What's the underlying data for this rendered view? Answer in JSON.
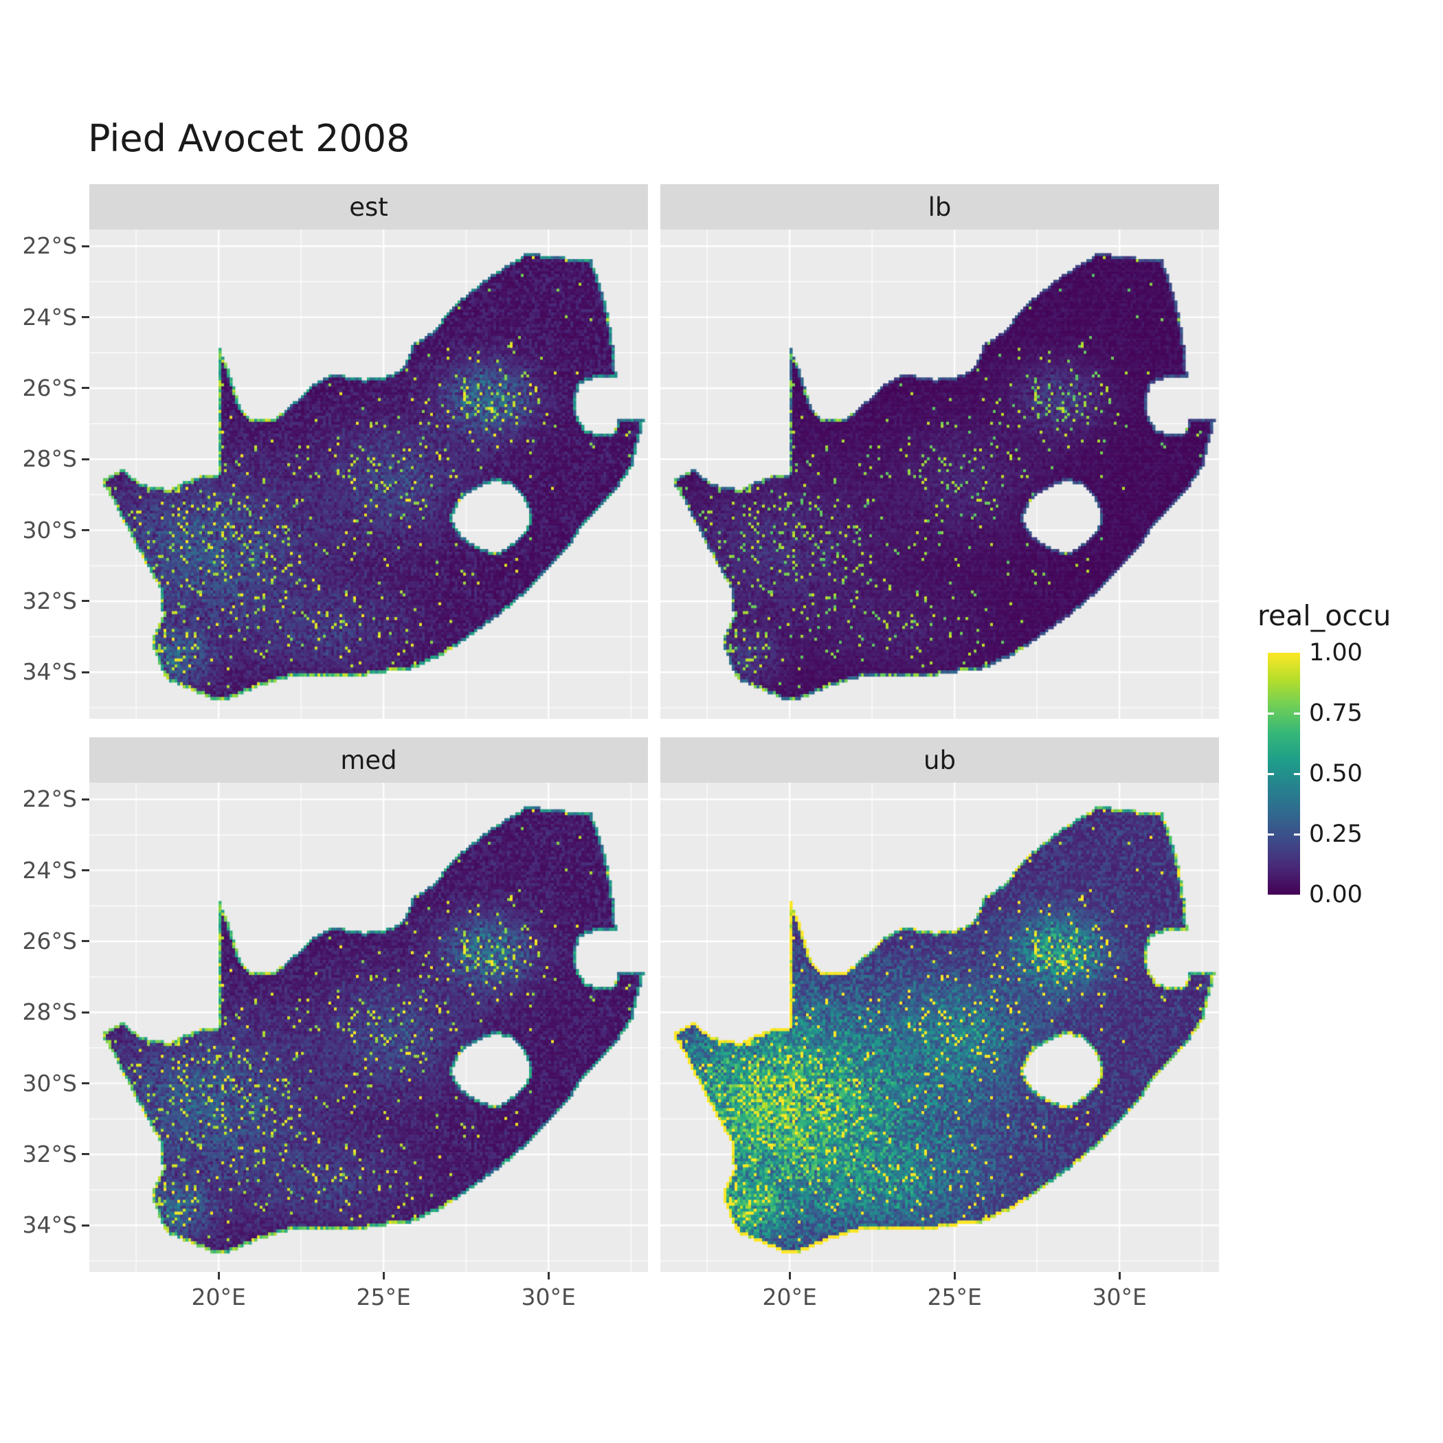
{
  "title": "Pied Avocet 2008",
  "facets": [
    {
      "label": "est"
    },
    {
      "label": "lb"
    },
    {
      "label": "med"
    },
    {
      "label": "ub"
    }
  ],
  "axes": {
    "y": {
      "labels": [
        "22°S",
        "24°S",
        "26°S",
        "28°S",
        "30°S",
        "32°S",
        "34°S"
      ],
      "values": [
        -22,
        -24,
        -26,
        -28,
        -30,
        -32,
        -34
      ]
    },
    "x": {
      "labels": [
        "20°E",
        "25°E",
        "30°E"
      ],
      "values": [
        20,
        25,
        30
      ]
    }
  },
  "legend": {
    "title": "real_occu",
    "labels": [
      "1.00",
      "0.75",
      "0.50",
      "0.25",
      "0.00"
    ],
    "values": [
      1,
      0.75,
      0.5,
      0.25,
      0
    ]
  },
  "colors": {
    "background": "#FFFFFF",
    "panel_bg": "#EBEBEB",
    "strip_bg": "#D9D9D9",
    "gridline": "#FFFFFF",
    "axis_text": "#4D4D4D",
    "tick_mark": "#333333",
    "title_text": "#1A1A1A",
    "viridis": [
      "#440154",
      "#482878",
      "#3E4A89",
      "#31688E",
      "#26828E",
      "#1F9E89",
      "#35B779",
      "#6ECE58",
      "#B5DE2B",
      "#FDE725"
    ]
  },
  "chart_data": {
    "type": "heatmap",
    "title": "Pied Avocet 2008",
    "variable": "real_occu",
    "scale_domain": [
      0,
      1
    ],
    "legend_breaks": [
      0,
      0.25,
      0.5,
      0.75,
      1
    ],
    "legend_position": "right",
    "facets": [
      "est",
      "lb",
      "med",
      "ub"
    ],
    "grid": true,
    "x_breaks_deg_east": [
      20,
      25,
      30
    ],
    "y_breaks_deg_south": [
      -22,
      -24,
      -26,
      -28,
      -30,
      -32,
      -34
    ],
    "x_range_deg_east": [
      16.1,
      33.0
    ],
    "y_range_deg_south": [
      -35.3,
      -21.5
    ],
    "region": "South Africa raster map with Lesotho shown as a hole; mostly low occupancy (dark purple) with bright speckled hotspots near 28E 26S, the western interior, central plains and the southwest/south coast rim; lb facet darkest, ub facet brightest",
    "facet_style": [
      {
        "label": "est",
        "mult": 1.0,
        "add": 0.0,
        "west": 0
      },
      {
        "label": "lb",
        "mult": 0.52,
        "add": 0.0,
        "west": 0
      },
      {
        "label": "med",
        "mult": 1.05,
        "add": 0.01,
        "west": 0
      },
      {
        "label": "ub",
        "mult": 1.5,
        "add": 0.06,
        "west": 0.45
      }
    ],
    "hotspots": [
      {
        "lon": 28.2,
        "lat": -26.3,
        "sx": 1.6,
        "sy": 1.0,
        "amp": 0.45
      },
      {
        "lon": 19.6,
        "lat": -30.6,
        "sx": 9.0,
        "sy": 5.0,
        "amp": 0.3
      },
      {
        "lon": 25.3,
        "lat": -28.6,
        "sx": 4.0,
        "sy": 2.5,
        "amp": 0.22
      },
      {
        "lon": 18.7,
        "lat": -33.6,
        "sx": 1.0,
        "sy": 0.6,
        "amp": 0.35
      },
      {
        "lon": 23.5,
        "lat": -32.8,
        "sx": 5.0,
        "sy": 1.5,
        "amp": 0.15
      }
    ],
    "map_outline": {
      "outer": [
        [
          16.45,
          -28.6
        ],
        [
          17.1,
          -28.25
        ],
        [
          17.6,
          -28.7
        ],
        [
          18.5,
          -28.85
        ],
        [
          19.3,
          -28.5
        ],
        [
          19.98,
          -28.43
        ],
        [
          19.98,
          -24.75
        ],
        [
          20.35,
          -25.6
        ],
        [
          20.65,
          -26.5
        ],
        [
          20.85,
          -26.82
        ],
        [
          21.7,
          -26.87
        ],
        [
          22.4,
          -26.3
        ],
        [
          22.9,
          -25.85
        ],
        [
          23.5,
          -25.6
        ],
        [
          24.4,
          -25.75
        ],
        [
          25.1,
          -25.65
        ],
        [
          25.6,
          -25.45
        ],
        [
          25.9,
          -24.75
        ],
        [
          26.5,
          -24.4
        ],
        [
          27.2,
          -23.6
        ],
        [
          28.0,
          -23.0
        ],
        [
          28.8,
          -22.5
        ],
        [
          29.37,
          -22.19
        ],
        [
          30.3,
          -22.3
        ],
        [
          31.3,
          -22.4
        ],
        [
          31.6,
          -23.2
        ],
        [
          31.8,
          -23.9
        ],
        [
          31.9,
          -24.4
        ],
        [
          32.0,
          -25.1
        ],
        [
          32.05,
          -25.68
        ],
        [
          31.4,
          -25.73
        ],
        [
          30.95,
          -25.85
        ],
        [
          30.79,
          -26.35
        ],
        [
          30.88,
          -26.85
        ],
        [
          31.1,
          -27.15
        ],
        [
          31.5,
          -27.3
        ],
        [
          31.95,
          -27.31
        ],
        [
          32.13,
          -26.85
        ],
        [
          32.89,
          -26.86
        ],
        [
          32.55,
          -28.15
        ],
        [
          32.25,
          -28.6
        ],
        [
          31.75,
          -29.15
        ],
        [
          31.05,
          -29.85
        ],
        [
          30.6,
          -30.5
        ],
        [
          30.0,
          -31.1
        ],
        [
          29.3,
          -31.75
        ],
        [
          28.5,
          -32.4
        ],
        [
          27.6,
          -33.0
        ],
        [
          26.8,
          -33.5
        ],
        [
          25.9,
          -33.9
        ],
        [
          25.0,
          -34.0
        ],
        [
          24.0,
          -34.15
        ],
        [
          23.0,
          -34.1
        ],
        [
          22.1,
          -34.15
        ],
        [
          21.2,
          -34.4
        ],
        [
          20.3,
          -34.75
        ],
        [
          19.9,
          -34.8
        ],
        [
          19.3,
          -34.55
        ],
        [
          18.9,
          -34.4
        ],
        [
          18.45,
          -34.2
        ],
        [
          18.25,
          -33.9
        ],
        [
          17.95,
          -33.1
        ],
        [
          18.3,
          -32.4
        ],
        [
          18.2,
          -31.6
        ],
        [
          17.6,
          -30.6
        ],
        [
          17.1,
          -29.7
        ],
        [
          16.7,
          -29.0
        ]
      ],
      "lesotho": [
        [
          27.05,
          -29.65
        ],
        [
          27.35,
          -29.1
        ],
        [
          27.75,
          -28.85
        ],
        [
          28.35,
          -28.6
        ],
        [
          28.95,
          -28.75
        ],
        [
          29.35,
          -29.25
        ],
        [
          29.45,
          -29.75
        ],
        [
          29.15,
          -30.2
        ],
        [
          28.5,
          -30.65
        ],
        [
          27.9,
          -30.5
        ],
        [
          27.35,
          -30.15
        ]
      ]
    }
  }
}
